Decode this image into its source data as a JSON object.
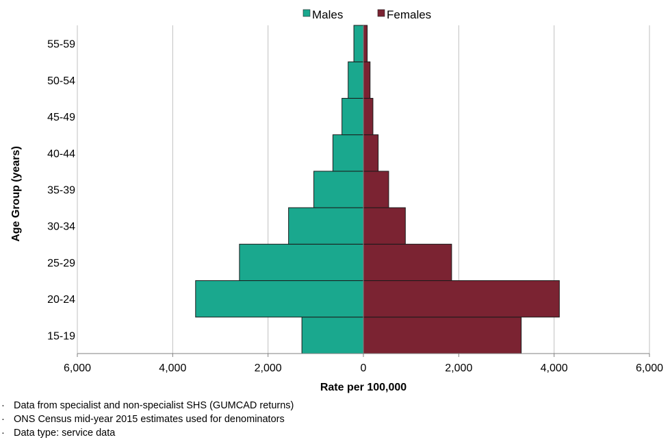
{
  "chart_data": {
    "type": "bar",
    "orientation": "horizontal",
    "layout": "population-pyramid",
    "categories": [
      "15-19",
      "20-24",
      "25-29",
      "30-34",
      "35-39",
      "40-44",
      "45-49",
      "50-54",
      "55-59"
    ],
    "series": [
      {
        "name": "Males",
        "color": "#1aa88e",
        "values": [
          1290,
          3520,
          2600,
          1570,
          1040,
          640,
          450,
          320,
          200
        ]
      },
      {
        "name": "Females",
        "color": "#7b2332",
        "values": [
          3310,
          4110,
          1850,
          880,
          530,
          310,
          200,
          140,
          80
        ]
      }
    ],
    "xlabel": "Rate per 100,000",
    "ylabel": "Age Group (years)",
    "xlim": [
      -6000,
      6000
    ],
    "xticks": [
      -6000,
      -4000,
      -2000,
      0,
      2000,
      4000,
      6000
    ],
    "xtick_labels": [
      "6,000",
      "4,000",
      "2,000",
      "0",
      "2,000",
      "4,000",
      "6,000"
    ],
    "grid": "vertical",
    "legend_position": "top"
  },
  "notes": [
    "Data from specialist and non-specialist SHS (GUMCAD returns)",
    "ONS Census mid-year 2015 estimates used for denominators",
    "Data type: service data"
  ],
  "bullet_glyph": "·"
}
